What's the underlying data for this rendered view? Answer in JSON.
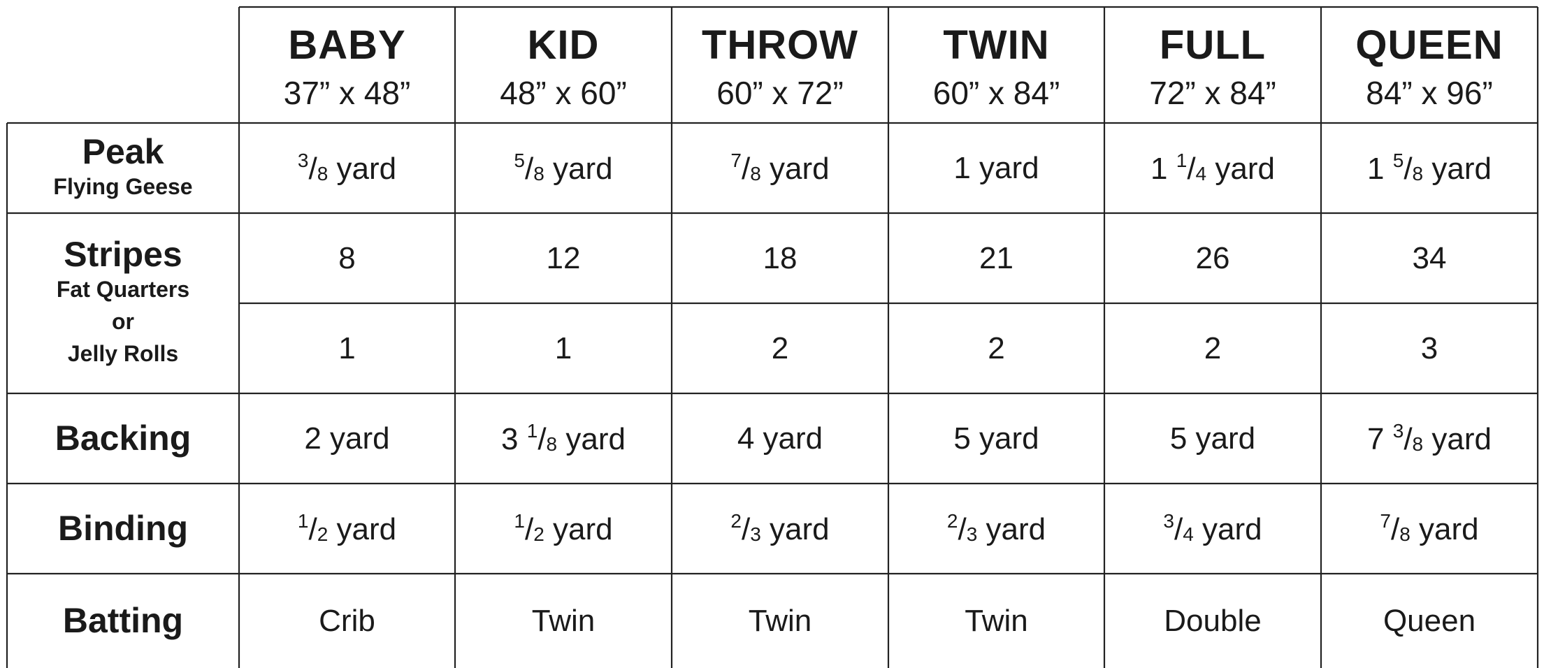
{
  "sizes": [
    {
      "name": "BABY",
      "dims": "37” x 48”"
    },
    {
      "name": "KID",
      "dims": "48” x 60”"
    },
    {
      "name": "THROW",
      "dims": "60” x 72”"
    },
    {
      "name": "TWIN",
      "dims": "60” x 84”"
    },
    {
      "name": "FULL",
      "dims": "72” x 84”"
    },
    {
      "name": "QUEEN",
      "dims": "84” x 96”"
    }
  ],
  "rows": {
    "peak": {
      "label": "Peak",
      "sublabel": "Flying Geese",
      "values": [
        "3/8 yard",
        "5/8 yard",
        "7/8 yard",
        "1 yard",
        "1 1/4 yard",
        "1 5/8 yard"
      ]
    },
    "stripes": {
      "label": "Stripes",
      "sublabel_1": "Fat Quarters",
      "sublabel_2": "or",
      "sublabel_3": "Jelly Rolls",
      "fat_quarters": [
        "8",
        "12",
        "18",
        "21",
        "26",
        "34"
      ],
      "jelly_rolls": [
        "1",
        "1",
        "2",
        "2",
        "2",
        "3"
      ]
    },
    "backing": {
      "label": "Backing",
      "values": [
        "2 yard",
        "3 1/8 yard",
        "4 yard",
        "5 yard",
        "5 yard",
        "7 3/8 yard"
      ]
    },
    "binding": {
      "label": "Binding",
      "values": [
        "1/2 yard",
        "1/2 yard",
        "2/3 yard",
        "2/3 yard",
        "3/4 yard",
        "7/8 yard"
      ]
    },
    "batting": {
      "label": "Batting",
      "values": [
        "Crib",
        "Twin",
        "Twin",
        "Twin",
        "Double",
        "Queen"
      ]
    }
  }
}
